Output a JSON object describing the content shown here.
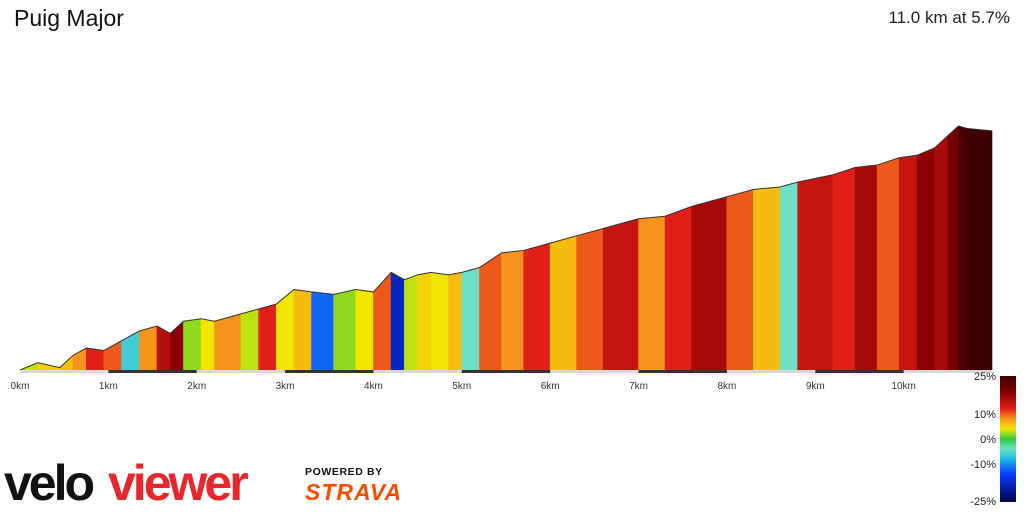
{
  "header": {
    "title": "Puig Major",
    "stats": "11.0 km at 5.7%"
  },
  "branding": {
    "velo_part": "velo",
    "viewer_part": "viewer",
    "velo_color": "#111111",
    "viewer_color": "#e8262c",
    "powered_by": "POWERED BY",
    "strava": "STRAVA",
    "strava_color": "#fc4c02"
  },
  "chart_data": {
    "type": "area",
    "title": "Puig Major",
    "x_unit": "km",
    "x_range": [
      0,
      11.0
    ],
    "x_ticks": [
      "0km",
      "1km",
      "2km",
      "3km",
      "4km",
      "5km",
      "6km",
      "7km",
      "8km",
      "9km",
      "10km"
    ],
    "average_gradient_pct": 5.7,
    "distance_km": 11.0,
    "color_scale": {
      "ticks": [
        "25%",
        "10%",
        "0%",
        "-10%",
        "-25%"
      ],
      "tick_values": [
        25,
        10,
        0,
        -10,
        -25
      ],
      "stops": [
        {
          "value": 25,
          "color": "#3d0000"
        },
        {
          "value": 18,
          "color": "#8b0000"
        },
        {
          "value": 12,
          "color": "#e02018"
        },
        {
          "value": 8,
          "color": "#f7941d"
        },
        {
          "value": 4,
          "color": "#f2e600"
        },
        {
          "value": 0,
          "color": "#2ecc40"
        },
        {
          "value": -4,
          "color": "#6ee0c8"
        },
        {
          "value": -8,
          "color": "#18b8e6"
        },
        {
          "value": -14,
          "color": "#0a3cff"
        },
        {
          "value": -25,
          "color": "#00004a"
        }
      ]
    },
    "elevation_profile": {
      "x_km": [
        0,
        0.2,
        0.45,
        0.6,
        0.75,
        0.95,
        1.15,
        1.35,
        1.55,
        1.7,
        1.85,
        2.05,
        2.2,
        2.5,
        2.7,
        2.9,
        3.1,
        3.3,
        3.55,
        3.8,
        4.0,
        4.2,
        4.35,
        4.5,
        4.65,
        4.85,
        5.0,
        5.2,
        5.45,
        5.7,
        6.0,
        6.3,
        6.6,
        7.0,
        7.3,
        7.6,
        8.0,
        8.3,
        8.6,
        8.8,
        9.2,
        9.45,
        9.7,
        9.95,
        10.15,
        10.35,
        10.5,
        10.62,
        10.72,
        11.0
      ],
      "relative_elevation": [
        0.0,
        0.03,
        0.01,
        0.06,
        0.09,
        0.08,
        0.12,
        0.16,
        0.18,
        0.15,
        0.2,
        0.21,
        0.2,
        0.23,
        0.25,
        0.27,
        0.33,
        0.32,
        0.31,
        0.33,
        0.32,
        0.4,
        0.37,
        0.39,
        0.4,
        0.39,
        0.4,
        0.42,
        0.48,
        0.49,
        0.52,
        0.55,
        0.58,
        0.62,
        0.63,
        0.67,
        0.71,
        0.74,
        0.75,
        0.77,
        0.8,
        0.83,
        0.84,
        0.87,
        0.88,
        0.91,
        0.96,
        1.0,
        0.99,
        0.98
      ],
      "gradient_pct": [
        3,
        5,
        6,
        8,
        12,
        10,
        -6,
        8,
        15,
        18,
        2,
        4,
        8,
        3,
        12,
        4,
        6,
        -12,
        2,
        4,
        10,
        -18,
        3,
        5,
        4,
        6,
        -4,
        10,
        8,
        12,
        6,
        10,
        14,
        8,
        12,
        16,
        10,
        6,
        -4,
        14,
        12,
        16,
        10,
        14,
        18,
        16,
        20,
        24,
        28,
        -8
      ]
    }
  }
}
